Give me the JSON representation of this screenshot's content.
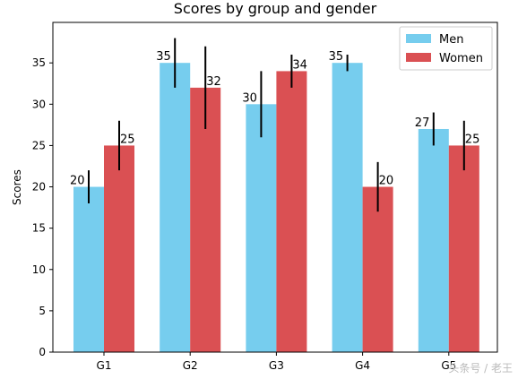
{
  "chart_data": {
    "type": "bar",
    "title": "Scores by group and gender",
    "xlabel": "",
    "ylabel": "Scores",
    "categories": [
      "G1",
      "G2",
      "G3",
      "G4",
      "G5"
    ],
    "ylim": [
      0,
      39.9
    ],
    "yticks": [
      0,
      5,
      10,
      15,
      20,
      25,
      30,
      35
    ],
    "grid": false,
    "legend_position": "top-right",
    "series": [
      {
        "name": "Men",
        "color": "#76cdee",
        "values": [
          20,
          35,
          30,
          35,
          27
        ],
        "errors": [
          2,
          3,
          4,
          1,
          2
        ]
      },
      {
        "name": "Women",
        "color": "#da5053",
        "values": [
          25,
          32,
          34,
          20,
          25
        ],
        "errors": [
          3,
          5,
          2,
          3,
          3
        ]
      }
    ]
  },
  "watermark": "头条号 / 老王"
}
